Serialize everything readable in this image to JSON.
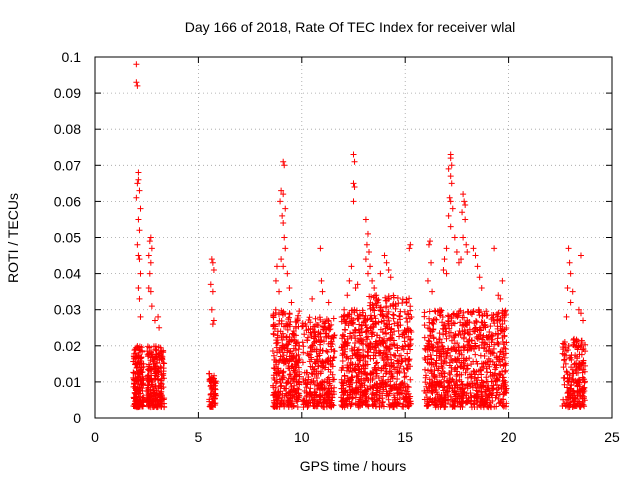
{
  "chart_data": {
    "type": "scatter",
    "title": "Day 166 of 2018, Rate Of TEC Index for receiver wlal",
    "xlabel": "GPS time / hours",
    "ylabel": "ROTI / TECUs",
    "xlim": [
      0,
      25
    ],
    "ylim": [
      0,
      0.1
    ],
    "xticks": [
      0,
      5,
      10,
      15,
      20,
      25
    ],
    "xtick_labels": [
      "0",
      "5",
      "10",
      "15",
      "20",
      "25"
    ],
    "yticks": [
      0,
      0.01,
      0.02,
      0.03,
      0.04,
      0.05,
      0.06,
      0.07,
      0.08,
      0.09,
      0.1
    ],
    "ytick_labels": [
      "0",
      "0.01",
      "0.02",
      "0.03",
      "0.04",
      "0.05",
      "0.06",
      "0.07",
      "0.08",
      "0.09",
      "0.1"
    ],
    "grid": true,
    "marker": "+",
    "color": "#ff0000",
    "series": [
      {
        "name": "ROTI",
        "clusters": [
          {
            "x_range": [
              1.85,
              2.35
            ],
            "y_range": [
              0.003,
              0.02
            ],
            "count": 180
          },
          {
            "x_range": [
              2.5,
              3.35
            ],
            "y_range": [
              0.003,
              0.02
            ],
            "count": 220
          },
          {
            "x_range": [
              5.5,
              5.85
            ],
            "y_range": [
              0.003,
              0.013
            ],
            "count": 60
          },
          {
            "x_range": [
              8.6,
              9.9
            ],
            "y_range": [
              0.003,
              0.03
            ],
            "count": 320
          },
          {
            "x_range": [
              10.0,
              11.6
            ],
            "y_range": [
              0.003,
              0.028
            ],
            "count": 320
          },
          {
            "x_range": [
              11.9,
              13.2
            ],
            "y_range": [
              0.003,
              0.03
            ],
            "count": 320
          },
          {
            "x_range": [
              13.2,
              15.3
            ],
            "y_range": [
              0.003,
              0.034
            ],
            "count": 460
          },
          {
            "x_range": [
              15.9,
              19.9
            ],
            "y_range": [
              0.003,
              0.03
            ],
            "count": 820
          },
          {
            "x_range": [
              22.6,
              23.7
            ],
            "y_range": [
              0.003,
              0.022
            ],
            "count": 200
          }
        ],
        "points": [
          [
            2.0,
            0.098
          ],
          [
            2.0,
            0.093
          ],
          [
            2.05,
            0.092
          ],
          [
            2.1,
            0.068
          ],
          [
            2.1,
            0.066
          ],
          [
            2.05,
            0.065
          ],
          [
            2.15,
            0.063
          ],
          [
            2.0,
            0.061
          ],
          [
            2.2,
            0.058
          ],
          [
            2.1,
            0.055
          ],
          [
            2.15,
            0.052
          ],
          [
            2.05,
            0.048
          ],
          [
            2.1,
            0.045
          ],
          [
            2.15,
            0.044
          ],
          [
            2.2,
            0.04
          ],
          [
            2.1,
            0.036
          ],
          [
            2.15,
            0.033
          ],
          [
            2.2,
            0.028
          ],
          [
            2.7,
            0.05
          ],
          [
            2.65,
            0.049
          ],
          [
            2.75,
            0.047
          ],
          [
            2.6,
            0.045
          ],
          [
            2.7,
            0.043
          ],
          [
            2.65,
            0.04
          ],
          [
            2.6,
            0.036
          ],
          [
            2.7,
            0.035
          ],
          [
            2.75,
            0.031
          ],
          [
            2.9,
            0.027
          ],
          [
            3.05,
            0.028
          ],
          [
            3.1,
            0.025
          ],
          [
            5.65,
            0.044
          ],
          [
            5.7,
            0.043
          ],
          [
            5.75,
            0.041
          ],
          [
            5.6,
            0.037
          ],
          [
            5.7,
            0.035
          ],
          [
            5.65,
            0.03
          ],
          [
            5.75,
            0.027
          ],
          [
            5.7,
            0.026
          ],
          [
            9.1,
            0.071
          ],
          [
            9.15,
            0.07
          ],
          [
            9.0,
            0.063
          ],
          [
            9.1,
            0.062
          ],
          [
            8.95,
            0.06
          ],
          [
            9.2,
            0.058
          ],
          [
            9.05,
            0.056
          ],
          [
            9.1,
            0.054
          ],
          [
            9.15,
            0.05
          ],
          [
            9.2,
            0.047
          ],
          [
            9.0,
            0.044
          ],
          [
            9.1,
            0.042
          ],
          [
            8.8,
            0.042
          ],
          [
            8.75,
            0.038
          ],
          [
            9.3,
            0.04
          ],
          [
            9.4,
            0.036
          ],
          [
            8.9,
            0.035
          ],
          [
            9.5,
            0.032
          ],
          [
            10.9,
            0.047
          ],
          [
            10.95,
            0.038
          ],
          [
            11.0,
            0.035
          ],
          [
            10.5,
            0.033
          ],
          [
            11.3,
            0.032
          ],
          [
            12.5,
            0.073
          ],
          [
            12.55,
            0.071
          ],
          [
            12.5,
            0.065
          ],
          [
            12.55,
            0.064
          ],
          [
            12.5,
            0.06
          ],
          [
            12.4,
            0.042
          ],
          [
            12.3,
            0.038
          ],
          [
            12.6,
            0.036
          ],
          [
            12.2,
            0.034
          ],
          [
            12.7,
            0.037
          ],
          [
            13.1,
            0.055
          ],
          [
            13.2,
            0.051
          ],
          [
            13.15,
            0.048
          ],
          [
            13.25,
            0.046
          ],
          [
            13.1,
            0.044
          ],
          [
            13.3,
            0.042
          ],
          [
            13.2,
            0.04
          ],
          [
            13.4,
            0.038
          ],
          [
            13.5,
            0.036
          ],
          [
            13.6,
            0.034
          ],
          [
            14.0,
            0.045
          ],
          [
            14.1,
            0.043
          ],
          [
            13.8,
            0.04
          ],
          [
            14.3,
            0.039
          ],
          [
            14.2,
            0.041
          ],
          [
            15.2,
            0.047
          ],
          [
            15.25,
            0.048
          ],
          [
            16.2,
            0.049
          ],
          [
            16.15,
            0.048
          ],
          [
            16.25,
            0.043
          ],
          [
            16.1,
            0.038
          ],
          [
            16.3,
            0.035
          ],
          [
            17.2,
            0.073
          ],
          [
            17.2,
            0.072
          ],
          [
            17.25,
            0.07
          ],
          [
            17.1,
            0.069
          ],
          [
            17.2,
            0.067
          ],
          [
            17.25,
            0.065
          ],
          [
            17.15,
            0.061
          ],
          [
            17.2,
            0.06
          ],
          [
            17.3,
            0.058
          ],
          [
            17.1,
            0.056
          ],
          [
            17.2,
            0.053
          ],
          [
            17.4,
            0.05
          ],
          [
            17.0,
            0.047
          ],
          [
            16.9,
            0.044
          ],
          [
            17.5,
            0.046
          ],
          [
            17.6,
            0.043
          ],
          [
            16.85,
            0.041
          ],
          [
            17.0,
            0.04
          ],
          [
            17.8,
            0.062
          ],
          [
            17.85,
            0.06
          ],
          [
            17.9,
            0.059
          ],
          [
            17.75,
            0.057
          ],
          [
            17.9,
            0.055
          ],
          [
            17.8,
            0.05
          ],
          [
            17.95,
            0.048
          ],
          [
            18.0,
            0.046
          ],
          [
            17.7,
            0.044
          ],
          [
            18.3,
            0.047
          ],
          [
            18.4,
            0.045
          ],
          [
            18.5,
            0.042
          ],
          [
            18.6,
            0.039
          ],
          [
            18.7,
            0.036
          ],
          [
            19.3,
            0.047
          ],
          [
            19.5,
            0.034
          ],
          [
            19.7,
            0.038
          ],
          [
            19.6,
            0.033
          ],
          [
            22.9,
            0.047
          ],
          [
            22.95,
            0.043
          ],
          [
            23.0,
            0.04
          ],
          [
            23.5,
            0.045
          ],
          [
            22.85,
            0.036
          ],
          [
            23.1,
            0.035
          ],
          [
            23.0,
            0.032
          ],
          [
            23.4,
            0.03
          ],
          [
            23.5,
            0.029
          ],
          [
            22.8,
            0.028
          ],
          [
            23.6,
            0.027
          ]
        ]
      }
    ]
  }
}
